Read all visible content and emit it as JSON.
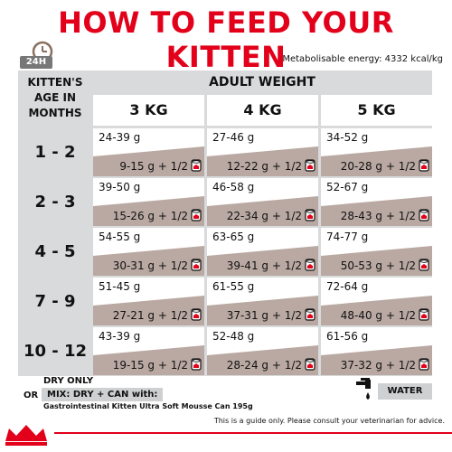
{
  "title": "HOW TO FEED YOUR KITTEN",
  "badge": "24H",
  "energy": "Metabolisable energy: 4332 kcal/kg",
  "table": {
    "age_header": [
      "KITTEN'S",
      "AGE IN",
      "MONTHS"
    ],
    "adult_weight": "ADULT WEIGHT",
    "weights": [
      "3 KG",
      "4 KG",
      "5 KG"
    ],
    "rows": [
      {
        "age": "1 - 2",
        "cells": [
          {
            "dry": "24-39 g",
            "mix": "9-15 g + 1/2"
          },
          {
            "dry": "27-46 g",
            "mix": "12-22 g + 1/2"
          },
          {
            "dry": "34-52 g",
            "mix": "20-28 g + 1/2"
          }
        ]
      },
      {
        "age": "2 - 3",
        "cells": [
          {
            "dry": "39-50 g",
            "mix": "15-26 g + 1/2"
          },
          {
            "dry": "46-58 g",
            "mix": "22-34 g + 1/2"
          },
          {
            "dry": "52-67 g",
            "mix": "28-43 g + 1/2"
          }
        ]
      },
      {
        "age": "4 - 5",
        "cells": [
          {
            "dry": "54-55 g",
            "mix": "30-31 g + 1/2"
          },
          {
            "dry": "63-65 g",
            "mix": "39-41 g + 1/2"
          },
          {
            "dry": "74-77 g",
            "mix": "50-53 g + 1/2"
          }
        ]
      },
      {
        "age": "7 - 9",
        "cells": [
          {
            "dry": "51-45 g",
            "mix": "27-21 g + 1/2"
          },
          {
            "dry": "61-55 g",
            "mix": "37-31 g + 1/2"
          },
          {
            "dry": "72-64 g",
            "mix": "48-40 g + 1/2"
          }
        ]
      },
      {
        "age": "10 - 12",
        "cells": [
          {
            "dry": "43-39 g",
            "mix": "19-15 g + 1/2"
          },
          {
            "dry": "52-48 g",
            "mix": "28-24 g + 1/2"
          },
          {
            "dry": "61-56 g",
            "mix": "37-32 g + 1/2"
          }
        ]
      }
    ]
  },
  "legend": {
    "dry_only": "DRY ONLY",
    "or": "OR",
    "mix": "MIX: DRY + CAN with:",
    "mix_product": "Gastrointestinal Kitten Ultra Soft Mousse Can 195g",
    "water": "WATER"
  },
  "footer": "This is a guide only. Please consult your veterinarian for advice.",
  "colors": {
    "brand_red": "#e2001a",
    "shade": "#b9a9a2",
    "table_bg": "#d9dadb"
  },
  "icons": [
    "clock-icon",
    "can-icon",
    "water-tap-icon",
    "royal-canin-crown-logo"
  ]
}
